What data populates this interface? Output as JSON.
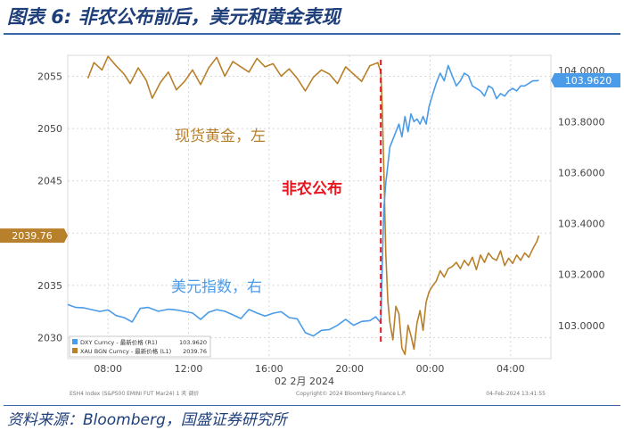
{
  "figure": {
    "title": "图表 6:  非农公布前后，美元和黄金表现",
    "source": "资料来源：Bloomberg，国盛证券研究所",
    "footer_left": "ESH4 Index (S&P500 EMINI FUT  Mar24) 1 天  调价",
    "footer_mid": "Copyright© 2024 Bloomberg Finance L.P.",
    "footer_right": "04-Feb-2024 13:41:55"
  },
  "colors": {
    "dxy": "#4a9be8",
    "xau": "#b8802a",
    "nfp": "#e8141e",
    "title": "#1f3f7a"
  },
  "chart_data": {
    "type": "line",
    "left_axis": {
      "ticks": [
        2030,
        2035,
        2040,
        2045,
        2050,
        2055
      ],
      "range": [
        2028,
        2057
      ],
      "current_label": "2039.76",
      "current_value": 2039.76
    },
    "right_axis": {
      "ticks": [
        "103.0000",
        "103.2000",
        "103.4000",
        "103.6000",
        "103.8000",
        "104.0000"
      ],
      "tick_values": [
        103.0,
        103.2,
        103.4,
        103.6,
        103.8,
        104.0
      ],
      "range": [
        102.87,
        104.06
      ],
      "current_label": "103.9620",
      "current_value": 103.962
    },
    "x_axis": {
      "ticks": [
        "08:00",
        "12:00",
        "16:00",
        "20:00",
        "00:00",
        "04:00"
      ],
      "tick_hours": [
        8,
        12,
        16,
        20,
        24,
        28
      ],
      "range_hours": [
        6,
        30
      ],
      "date_label": "02 2月 2024"
    },
    "nfp_hour": 21.55,
    "annotations": {
      "gold": "现货黄金，左",
      "dxy": "美元指数，右",
      "nfp": "非农公布"
    },
    "legend": [
      {
        "label": "DXY Curncy - 最新价格 (R1)",
        "value": "103.9620"
      },
      {
        "label": "XAU BGN Curncy - 最新价格 (L1)",
        "value": "2039.76"
      }
    ],
    "series": [
      {
        "name": "XAU BGN Curncy",
        "axis": "left",
        "hours": [
          7.0,
          7.3,
          7.7,
          8.0,
          8.4,
          8.8,
          9.1,
          9.5,
          9.9,
          10.2,
          10.6,
          11.0,
          11.4,
          11.8,
          12.2,
          12.6,
          13.0,
          13.4,
          13.8,
          14.2,
          14.6,
          15.0,
          15.4,
          15.8,
          16.2,
          16.6,
          17.0,
          17.4,
          17.8,
          18.2,
          18.6,
          19.0,
          19.4,
          19.8,
          20.2,
          20.6,
          21.0,
          21.4,
          21.55,
          21.62,
          21.7,
          21.8,
          21.9,
          22.0,
          22.15,
          22.3,
          22.45,
          22.6,
          22.75,
          22.9,
          23.05,
          23.2,
          23.35,
          23.5,
          23.65,
          23.8,
          23.95,
          24.1,
          24.3,
          24.5,
          24.7,
          24.9,
          25.1,
          25.3,
          25.5,
          25.7,
          25.9,
          26.1,
          26.3,
          26.5,
          26.7,
          26.9,
          27.1,
          27.3,
          27.5,
          27.7,
          27.9,
          28.1,
          28.3,
          28.5,
          28.7,
          28.9,
          29.1,
          29.3,
          29.4
        ],
        "values": [
          2054.8,
          2056.3,
          2055.6,
          2056.9,
          2056.0,
          2055.2,
          2054.3,
          2055.8,
          2054.6,
          2052.9,
          2054.4,
          2055.4,
          2053.7,
          2054.5,
          2055.6,
          2054.2,
          2055.8,
          2056.8,
          2055.0,
          2056.4,
          2055.9,
          2055.4,
          2056.7,
          2055.9,
          2056.2,
          2055.0,
          2055.7,
          2054.8,
          2053.6,
          2054.9,
          2055.6,
          2055.2,
          2054.3,
          2055.9,
          2055.2,
          2054.5,
          2056.0,
          2056.3,
          2055.4,
          2052.0,
          2046.0,
          2038.0,
          2033.5,
          2031.5,
          2029.8,
          2033.0,
          2032.3,
          2029.0,
          2028.4,
          2031.2,
          2030.2,
          2028.9,
          2031.4,
          2032.6,
          2030.7,
          2033.4,
          2034.4,
          2034.9,
          2035.4,
          2036.4,
          2035.8,
          2036.6,
          2036.8,
          2037.2,
          2036.6,
          2037.4,
          2036.9,
          2037.7,
          2036.5,
          2037.9,
          2037.2,
          2038.1,
          2037.6,
          2037.4,
          2038.3,
          2036.9,
          2037.6,
          2037.1,
          2037.9,
          2037.4,
          2038.1,
          2037.7,
          2038.5,
          2039.2,
          2039.76
        ]
      },
      {
        "name": "DXY Curncy",
        "axis": "right",
        "hours": [
          6.0,
          6.4,
          6.8,
          7.2,
          7.6,
          8.0,
          8.4,
          8.8,
          9.2,
          9.6,
          10.0,
          10.5,
          11.0,
          11.4,
          11.8,
          12.2,
          12.6,
          13.0,
          13.4,
          13.8,
          14.2,
          14.6,
          15.0,
          15.4,
          15.8,
          16.2,
          16.6,
          17.0,
          17.4,
          17.8,
          18.2,
          18.6,
          19.0,
          19.4,
          19.8,
          20.2,
          20.6,
          21.0,
          21.3,
          21.55,
          21.62,
          21.7,
          21.8,
          21.9,
          22.0,
          22.15,
          22.3,
          22.45,
          22.6,
          22.75,
          22.9,
          23.05,
          23.2,
          23.35,
          23.5,
          23.65,
          23.8,
          23.95,
          24.1,
          24.3,
          24.5,
          24.7,
          24.9,
          25.1,
          25.3,
          25.5,
          25.7,
          25.9,
          26.1,
          26.3,
          26.5,
          26.7,
          26.9,
          27.1,
          27.3,
          27.5,
          27.7,
          27.9,
          28.1,
          28.3,
          28.5,
          28.7,
          28.9,
          29.1,
          29.3,
          29.4
        ],
        "values": [
          103.082,
          103.071,
          103.069,
          103.062,
          103.055,
          103.061,
          103.039,
          103.031,
          103.014,
          103.067,
          103.071,
          103.056,
          103.064,
          103.061,
          103.055,
          103.049,
          103.024,
          103.052,
          103.062,
          103.056,
          103.042,
          103.027,
          103.063,
          103.049,
          103.037,
          103.048,
          103.054,
          103.031,
          103.026,
          102.972,
          102.959,
          102.981,
          102.984,
          103.001,
          103.024,
          103.001,
          103.016,
          103.019,
          103.034,
          103.01,
          103.24,
          103.46,
          103.56,
          103.63,
          103.7,
          103.73,
          103.76,
          103.79,
          103.74,
          103.82,
          103.76,
          103.83,
          103.8,
          103.81,
          103.79,
          103.82,
          103.79,
          103.86,
          103.9,
          103.95,
          103.99,
          103.96,
          104.02,
          103.98,
          103.94,
          103.96,
          103.99,
          103.98,
          103.94,
          103.93,
          103.92,
          103.9,
          103.94,
          103.93,
          103.89,
          103.91,
          103.9,
          103.92,
          103.93,
          103.92,
          103.94,
          103.94,
          103.95,
          103.96,
          103.96,
          103.962
        ]
      }
    ]
  }
}
